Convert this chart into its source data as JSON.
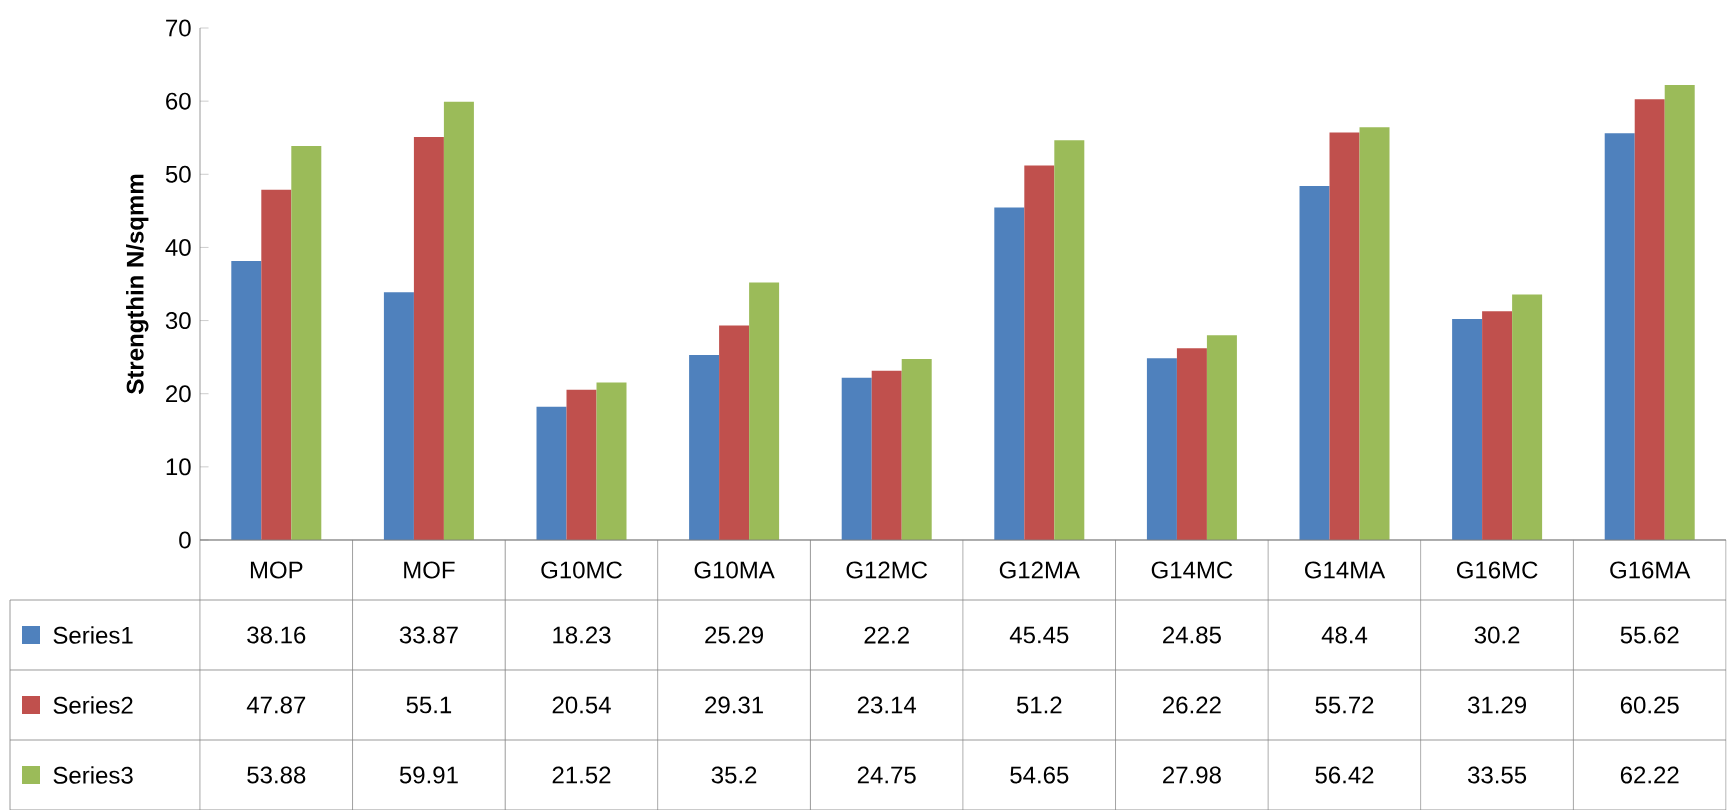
{
  "chart_data": {
    "type": "bar",
    "ylabel": "Strengthin N/sqmm",
    "categories": [
      "MOP",
      "MOF",
      "G10MC",
      "G10MA",
      "G12MC",
      "G12MA",
      "G14MC",
      "G14MA",
      "G16MC",
      "G16MA"
    ],
    "series": [
      {
        "name": "Series1",
        "color": "#4f81bd",
        "values": [
          38.16,
          33.87,
          18.23,
          25.29,
          22.2,
          45.45,
          24.85,
          48.4,
          30.2,
          55.62
        ]
      },
      {
        "name": "Series2",
        "color": "#c0504d",
        "values": [
          47.87,
          55.1,
          20.54,
          29.31,
          23.14,
          51.2,
          26.22,
          55.72,
          31.29,
          60.25
        ]
      },
      {
        "name": "Series3",
        "color": "#9bbb59",
        "values": [
          53.88,
          59.91,
          21.52,
          35.2,
          24.75,
          54.65,
          27.98,
          56.42,
          33.55,
          62.22
        ]
      }
    ],
    "ylim": [
      0,
      70
    ],
    "yticks": [
      0,
      10,
      20,
      30,
      40,
      50,
      60,
      70
    ],
    "data_labels": true,
    "legend": "bottom left"
  }
}
